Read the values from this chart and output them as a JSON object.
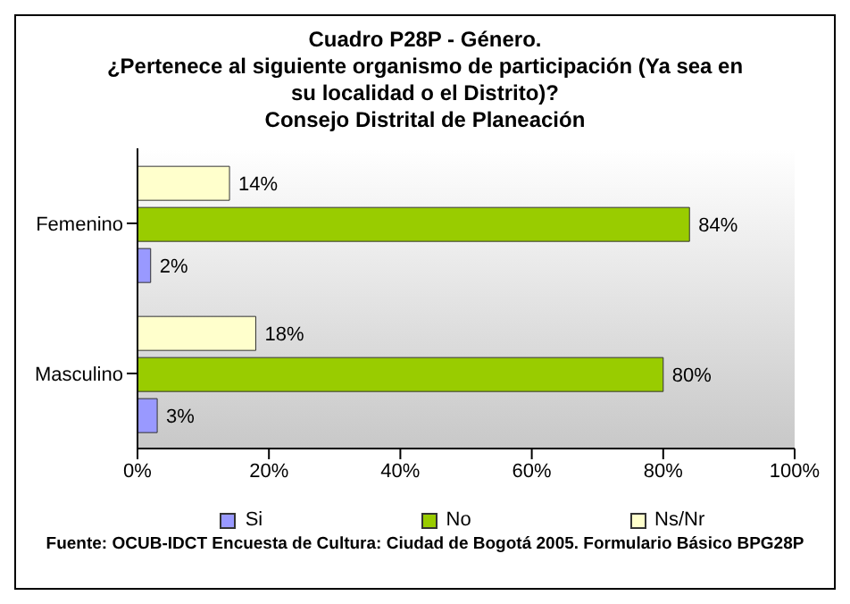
{
  "chart_data": {
    "type": "bar",
    "orientation": "horizontal",
    "title": "Cuadro P28P - Género.\n¿Pertenece al siguiente organismo de participación (Ya sea en\nsu localidad o el Distrito)?\nConsejo Distrital de Planeación",
    "categories": [
      "Femenino",
      "Masculino"
    ],
    "series": [
      {
        "name": "Si",
        "color": "#9999ff",
        "values": [
          2,
          3
        ],
        "value_labels": [
          "2%",
          "3%"
        ]
      },
      {
        "name": "No",
        "color": "#99cc00",
        "values": [
          84,
          80
        ],
        "value_labels": [
          "84%",
          "80%"
        ]
      },
      {
        "name": "Ns/Nr",
        "color": "#ffffcc",
        "values": [
          14,
          18
        ],
        "value_labels": [
          "14%",
          "18%"
        ]
      }
    ],
    "xlim": [
      0,
      100
    ],
    "xticks": [
      {
        "value": 0,
        "label": "0%"
      },
      {
        "value": 20,
        "label": "20%"
      },
      {
        "value": 40,
        "label": "40%"
      },
      {
        "value": 60,
        "label": "60%"
      },
      {
        "value": 80,
        "label": "80%"
      },
      {
        "value": 100,
        "label": "100%"
      }
    ],
    "grid": false,
    "legend": "bottom",
    "annotations": [
      "Fuente: OCUB-IDCT Encuesta de Cultura: Ciudad de Bogotá 2005. Formulario Básico BPG28P"
    ]
  }
}
